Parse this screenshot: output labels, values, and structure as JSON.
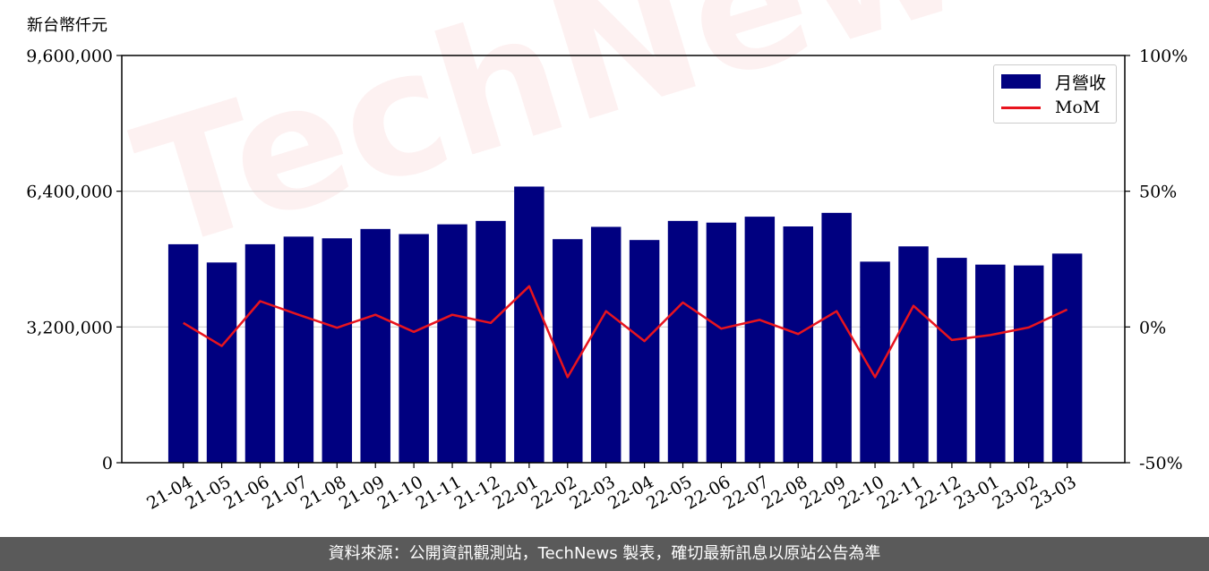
{
  "unit_label": "新台幣仟元",
  "watermark": "TechNews",
  "footer": "資料來源：公開資訊觀測站，TechNews 製表，確切最新訊息以原站公告為準",
  "colors": {
    "bar": "#000080",
    "line": "#e8141e",
    "grid": "#d0d0d0"
  },
  "chart_data": {
    "type": "bar",
    "categories": [
      "21-04",
      "21-05",
      "21-06",
      "21-07",
      "21-08",
      "21-09",
      "21-10",
      "21-11",
      "21-12",
      "22-01",
      "22-02",
      "22-03",
      "22-04",
      "22-05",
      "22-06",
      "22-07",
      "22-08",
      "22-09",
      "22-10",
      "22-11",
      "22-12",
      "23-01",
      "23-02",
      "23-03"
    ],
    "series": [
      {
        "name": "月營收",
        "type": "bar",
        "axis": "left",
        "values": [
          5150000,
          4720000,
          5150000,
          5330000,
          5290000,
          5510000,
          5390000,
          5620000,
          5700000,
          6510000,
          5270000,
          5560000,
          5250000,
          5700000,
          5660000,
          5800000,
          5570000,
          5890000,
          4740000,
          5100000,
          4830000,
          4670000,
          4650000,
          4930000
        ]
      },
      {
        "name": "MoM",
        "type": "line",
        "axis": "right",
        "values": [
          1.5,
          -7.0,
          9.5,
          4.5,
          -0.3,
          4.5,
          -1.8,
          4.5,
          1.5,
          15.0,
          -18.5,
          5.8,
          -5.2,
          9.0,
          -0.6,
          2.6,
          -2.6,
          5.8,
          -18.5,
          7.8,
          -4.8,
          -3.0,
          -0.2,
          6.4
        ]
      }
    ],
    "y_left": {
      "ylim": [
        0,
        9600000
      ],
      "ticks": [
        0,
        3200000,
        6400000,
        9600000
      ],
      "tick_labels": [
        "0",
        "3,200,000",
        "6,400,000",
        "9,600,000"
      ]
    },
    "y_right": {
      "ylim": [
        -50,
        100
      ],
      "ticks": [
        -50,
        0,
        50,
        100
      ],
      "tick_labels": [
        "-50%",
        "0%",
        "50%",
        "100%"
      ]
    },
    "grid": "horizontal",
    "legend": "top-right"
  }
}
